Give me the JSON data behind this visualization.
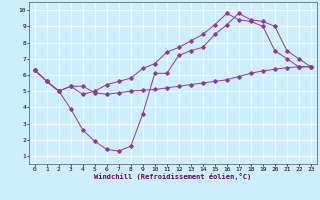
{
  "xlabel": "Windchill (Refroidissement éolien,°C)",
  "bg_color": "#cceeff",
  "line_color": "#993399",
  "grid_color": "#ffffff",
  "xlim": [
    -0.5,
    23.5
  ],
  "ylim": [
    0.5,
    10.5
  ],
  "xticks": [
    0,
    1,
    2,
    3,
    4,
    5,
    6,
    7,
    8,
    9,
    10,
    11,
    12,
    13,
    14,
    15,
    16,
    17,
    18,
    19,
    20,
    21,
    22,
    23
  ],
  "yticks": [
    1,
    2,
    3,
    4,
    5,
    6,
    7,
    8,
    9,
    10
  ],
  "line1_x": [
    0,
    1,
    2,
    3,
    4,
    5,
    6,
    7,
    8,
    9,
    10,
    11,
    12,
    13,
    14,
    15,
    16,
    17,
    18,
    19,
    20,
    21,
    22,
    23
  ],
  "line1_y": [
    6.3,
    5.6,
    5.0,
    5.3,
    5.3,
    4.9,
    4.8,
    4.9,
    5.0,
    5.05,
    5.1,
    5.2,
    5.3,
    5.4,
    5.5,
    5.6,
    5.7,
    5.9,
    6.1,
    6.25,
    6.35,
    6.45,
    6.5,
    6.5
  ],
  "line2_x": [
    0,
    1,
    2,
    3,
    4,
    5,
    6,
    7,
    8,
    9,
    10,
    11,
    12,
    13,
    14,
    15,
    16,
    17,
    18,
    19,
    20,
    21,
    22,
    23
  ],
  "line2_y": [
    6.3,
    5.6,
    5.0,
    3.9,
    2.6,
    1.9,
    1.4,
    1.3,
    1.6,
    3.6,
    6.1,
    6.1,
    7.2,
    7.5,
    7.7,
    8.5,
    9.1,
    9.8,
    9.4,
    9.3,
    9.0,
    7.5,
    7.0,
    6.5
  ],
  "line3_x": [
    0,
    1,
    2,
    3,
    4,
    5,
    6,
    7,
    8,
    9,
    10,
    11,
    12,
    13,
    14,
    15,
    16,
    17,
    18,
    19,
    20,
    21,
    22,
    23
  ],
  "line3_y": [
    6.3,
    5.6,
    5.0,
    5.3,
    4.8,
    5.0,
    5.4,
    5.6,
    5.8,
    6.4,
    6.7,
    7.4,
    7.7,
    8.1,
    8.5,
    9.1,
    9.8,
    9.4,
    9.3,
    9.0,
    7.5,
    7.0,
    6.5,
    6.5
  ]
}
